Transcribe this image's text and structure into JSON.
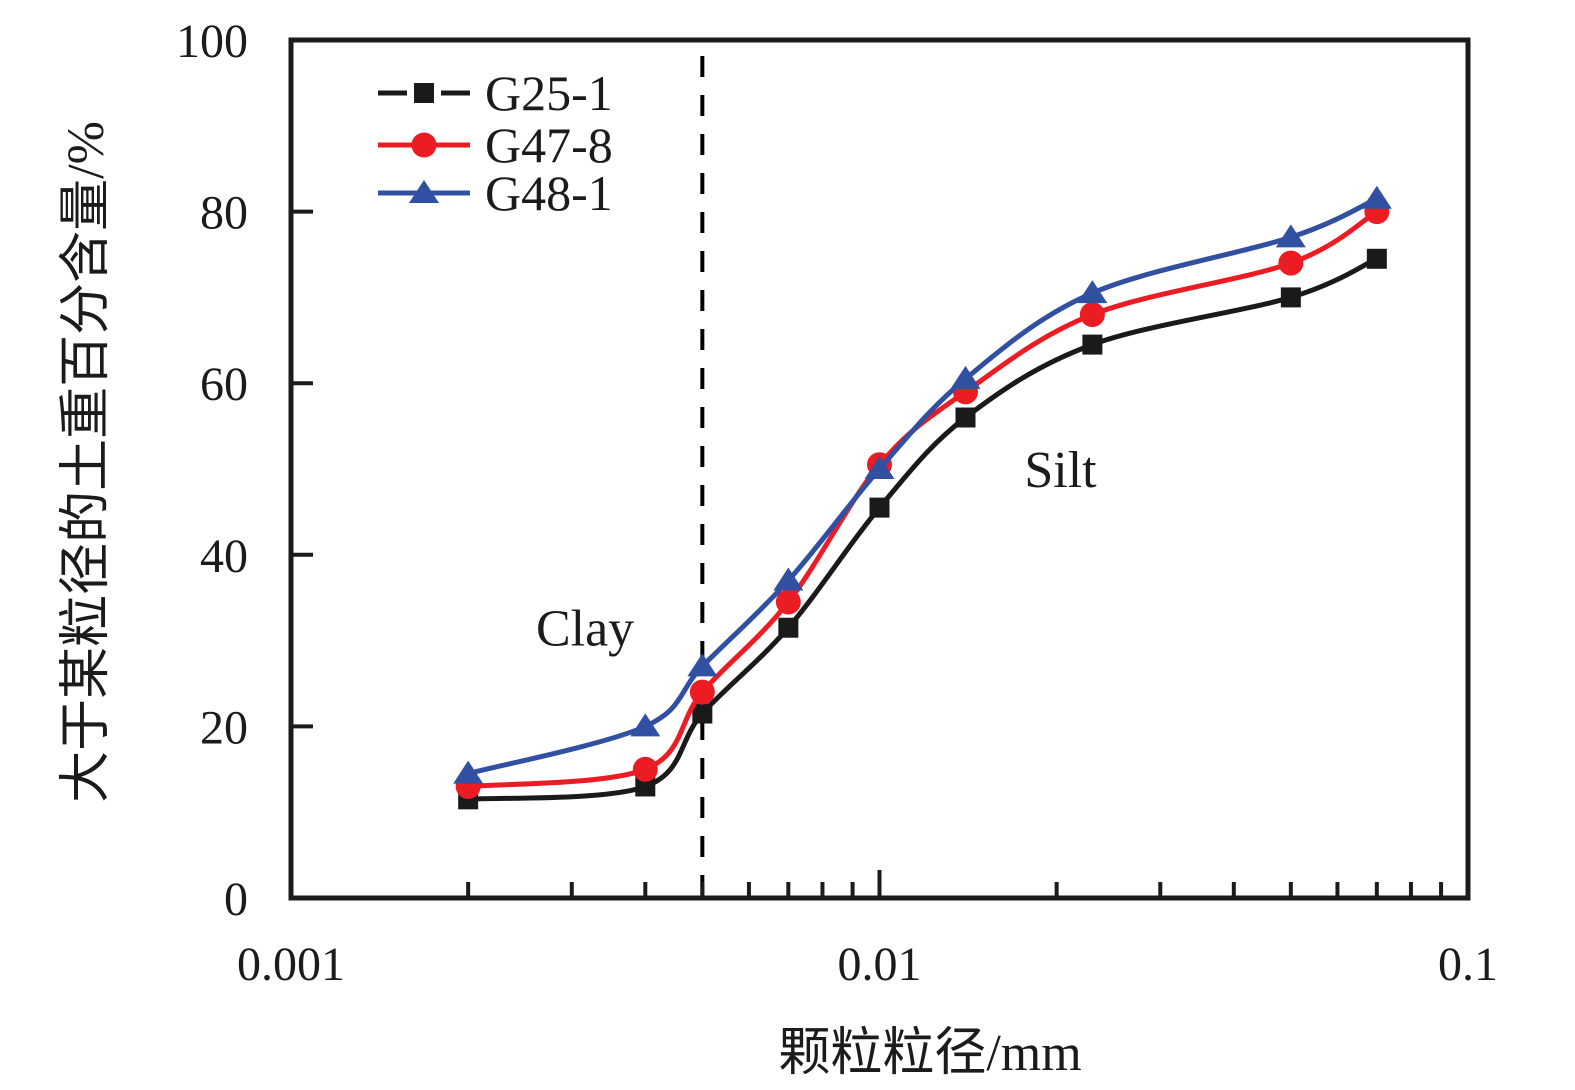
{
  "figure": {
    "background": "#ffffff",
    "text_color": "#1b1b1b"
  },
  "chart_data": {
    "type": "line",
    "title": "",
    "xlabel": "颗粒粒径/mm",
    "ylabel": "大于某粒径的土重百分含量/%",
    "x_axis": {
      "scale": "log",
      "min": 0.001,
      "max": 0.1,
      "major_ticks": [
        0.001,
        0.01,
        0.1
      ],
      "tick_labels": [
        "0.001",
        "0.01",
        "0.1"
      ],
      "minor_tick_mantissas": [
        2,
        3,
        4,
        5,
        6,
        7,
        8,
        9
      ]
    },
    "y_axis": {
      "scale": "linear",
      "min": 0,
      "max": 100,
      "major_ticks": [
        0,
        20,
        40,
        60,
        80,
        100
      ],
      "tick_labels": [
        "0",
        "20",
        "40",
        "60",
        "80",
        "100"
      ]
    },
    "grid": false,
    "x": [
      0.002,
      0.004,
      0.005,
      0.007,
      0.01,
      0.014,
      0.023,
      0.05,
      0.07
    ],
    "series": [
      {
        "name": "G25-1",
        "color": "#1a1a1a",
        "marker": "square",
        "values": [
          11.5,
          13,
          21.5,
          31.5,
          45.5,
          56,
          64.5,
          70,
          74.5
        ]
      },
      {
        "name": "G47-8",
        "color": "#ec1c24",
        "marker": "circle",
        "values": [
          13,
          15,
          24,
          34.5,
          50.5,
          59,
          68,
          74,
          80
        ]
      },
      {
        "name": "G48-1",
        "color": "#3150a2",
        "marker": "triangle",
        "values": [
          14.5,
          20,
          27,
          37,
          50,
          60.5,
          70.5,
          77,
          81.5
        ]
      }
    ],
    "legend": {
      "position": "top-left-inside",
      "entries": [
        "G25-1",
        "G47-8",
        "G48-1"
      ]
    },
    "boundary_line": {
      "x": 0.005,
      "style": "dashed",
      "color": "#000000"
    },
    "annotations": [
      {
        "text": "Clay",
        "x": 0.00316,
        "y": 31.5
      },
      {
        "text": "Silt",
        "x": 0.0203,
        "y": 50
      }
    ]
  }
}
